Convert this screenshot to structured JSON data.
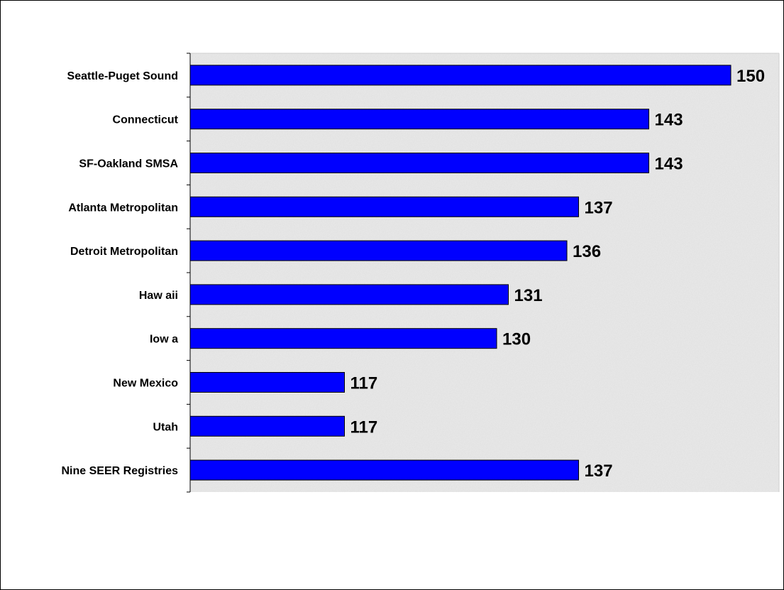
{
  "chart_data": {
    "type": "bar",
    "orientation": "horizontal",
    "categories": [
      "Seattle-Puget Sound",
      "Connecticut",
      "SF-Oakland SMSA",
      "Atlanta Metropolitan",
      "Detroit Metropolitan",
      "Haw aii",
      "Iow a",
      "New Mexico",
      "Utah",
      "Nine SEER Registries"
    ],
    "values": [
      150,
      143,
      143,
      137,
      136,
      131,
      130,
      117,
      117,
      137
    ],
    "data_labels": [
      "150",
      "143",
      "143",
      "137",
      "136",
      "131",
      "130",
      "117",
      "117",
      "137"
    ],
    "title": "",
    "xlabel": "",
    "ylabel": "",
    "xlim": [
      110,
      155
    ],
    "grid": false,
    "legend": "none",
    "colors": {
      "bar_fill": "#0000ff",
      "bar_stroke": "#000000",
      "plot_background": "#ebebeb"
    }
  }
}
